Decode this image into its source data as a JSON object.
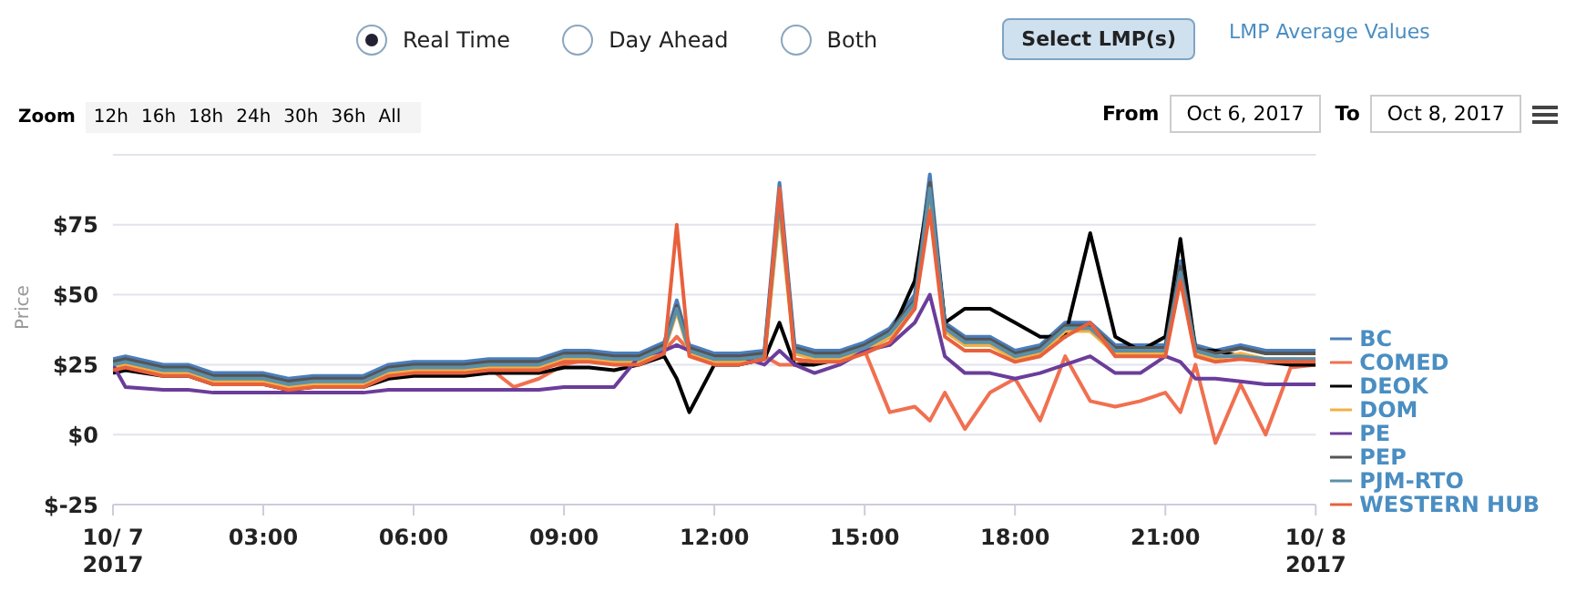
{
  "chart_data": {
    "type": "line",
    "ylabel": "Price",
    "legend": "right",
    "grid": "y",
    "marker": "none",
    "line_style": "solid",
    "annotations": [
      "Real Time",
      "Day Ahead",
      "Both",
      "Select LMP(s)",
      "LMP Average Values",
      "Zoom",
      "12h",
      "16h",
      "18h",
      "24h",
      "30h",
      "36h",
      "All",
      "From",
      "Oct 6, 2017",
      "To",
      "Oct 8, 2017"
    ],
    "xlim": [
      0,
      24
    ],
    "xticks": [
      {
        "value": 0,
        "label": "10/ 7\n2017"
      },
      {
        "value": 3,
        "label": "03:00"
      },
      {
        "value": 6,
        "label": "06:00"
      },
      {
        "value": 9,
        "label": "09:00"
      },
      {
        "value": 12,
        "label": "12:00"
      },
      {
        "value": 15,
        "label": "15:00"
      },
      {
        "value": 18,
        "label": "18:00"
      },
      {
        "value": 21,
        "label": "21:00"
      },
      {
        "value": 24,
        "label": "10/ 8\n2017"
      }
    ],
    "ylim": [
      -25,
      100
    ],
    "yticks": [
      {
        "value": -25,
        "label": "$-25"
      },
      {
        "value": 0,
        "label": "$0"
      },
      {
        "value": 25,
        "label": "$25"
      },
      {
        "value": 50,
        "label": "$50"
      },
      {
        "value": 75,
        "label": "$75"
      },
      {
        "value": 100,
        "label": null
      }
    ],
    "x": [
      0,
      0.25,
      1,
      1.5,
      2,
      2.5,
      3,
      3.5,
      4,
      4.5,
      5,
      5.5,
      6,
      6.5,
      7,
      7.5,
      8,
      8.5,
      9,
      9.5,
      10,
      10.5,
      11,
      11.25,
      11.5,
      12,
      12.5,
      13,
      13.3,
      13.6,
      14,
      14.5,
      15,
      15.5,
      16,
      16.3,
      16.6,
      17,
      17.5,
      18,
      18.5,
      19,
      19.5,
      20,
      20.5,
      21,
      21.3,
      21.6,
      22,
      22.5,
      23,
      23.5,
      24
    ],
    "series": [
      {
        "name": "BC",
        "color": "#4a7ebb",
        "values": [
          27,
          28,
          25,
          25,
          22,
          22,
          22,
          20,
          21,
          21,
          21,
          25,
          26,
          26,
          26,
          27,
          27,
          27,
          30,
          30,
          29,
          29,
          33,
          48,
          32,
          29,
          29,
          30,
          90,
          32,
          30,
          30,
          33,
          38,
          50,
          93,
          40,
          35,
          35,
          30,
          32,
          40,
          40,
          32,
          32,
          32,
          62,
          32,
          30,
          32,
          30,
          30,
          30
        ]
      },
      {
        "name": "COMED",
        "color": "#f07050",
        "values": [
          25,
          26,
          22,
          22,
          20,
          20,
          20,
          18,
          19,
          19,
          19,
          22,
          23,
          23,
          23,
          24,
          17,
          20,
          25,
          27,
          26,
          26,
          30,
          35,
          30,
          27,
          27,
          28,
          25,
          25,
          27,
          27,
          30,
          8,
          10,
          5,
          15,
          2,
          15,
          20,
          5,
          28,
          12,
          10,
          12,
          15,
          8,
          25,
          -3,
          18,
          0,
          24,
          25
        ]
      },
      {
        "name": "DEOK",
        "color": "#000000",
        "values": [
          22,
          23,
          21,
          21,
          18,
          18,
          18,
          16,
          17,
          17,
          17,
          20,
          21,
          21,
          21,
          22,
          22,
          22,
          24,
          24,
          23,
          25,
          28,
          20,
          8,
          25,
          25,
          27,
          40,
          25,
          25,
          27,
          30,
          35,
          55,
          88,
          40,
          45,
          45,
          40,
          35,
          35,
          72,
          35,
          30,
          35,
          70,
          30,
          30,
          28,
          26,
          25,
          25
        ]
      },
      {
        "name": "DOM",
        "color": "#f5b041",
        "values": [
          24,
          25,
          22,
          22,
          19,
          19,
          19,
          17,
          18,
          18,
          18,
          22,
          23,
          23,
          23,
          24,
          24,
          24,
          27,
          27,
          26,
          26,
          30,
          44,
          29,
          26,
          26,
          27,
          80,
          29,
          27,
          27,
          30,
          35,
          45,
          85,
          37,
          32,
          32,
          27,
          29,
          37,
          37,
          29,
          29,
          29,
          56,
          29,
          27,
          29,
          27,
          27,
          27
        ]
      },
      {
        "name": "PE",
        "color": "#6a3d9a",
        "values": [
          25,
          17,
          16,
          16,
          15,
          15,
          15,
          15,
          15,
          15,
          15,
          16,
          16,
          16,
          16,
          16,
          16,
          16,
          17,
          17,
          17,
          28,
          30,
          32,
          30,
          28,
          28,
          25,
          30,
          25,
          22,
          25,
          30,
          32,
          40,
          50,
          28,
          22,
          22,
          20,
          22,
          25,
          28,
          22,
          22,
          28,
          26,
          20,
          20,
          19,
          18,
          18,
          18
        ]
      },
      {
        "name": "PEP",
        "color": "#555555",
        "values": [
          26,
          27,
          24,
          24,
          21,
          21,
          21,
          19,
          20,
          20,
          20,
          24,
          25,
          25,
          25,
          26,
          26,
          26,
          29,
          29,
          28,
          28,
          32,
          46,
          31,
          28,
          28,
          29,
          86,
          31,
          29,
          29,
          32,
          37,
          48,
          90,
          39,
          34,
          34,
          29,
          31,
          39,
          39,
          31,
          31,
          31,
          60,
          31,
          29,
          31,
          29,
          29,
          29
        ]
      },
      {
        "name": "PJM-RTO",
        "color": "#5b8fa8",
        "values": [
          25,
          26,
          23,
          23,
          20,
          20,
          20,
          18,
          19,
          19,
          19,
          23,
          24,
          24,
          24,
          25,
          25,
          25,
          28,
          28,
          27,
          27,
          31,
          45,
          30,
          27,
          27,
          28,
          84,
          30,
          28,
          28,
          31,
          36,
          47,
          88,
          38,
          33,
          33,
          28,
          30,
          38,
          38,
          30,
          30,
          30,
          58,
          30,
          28,
          28,
          27,
          27,
          27
        ]
      },
      {
        "name": "WESTERN HUB",
        "color": "#e8613c",
        "values": [
          23,
          24,
          21,
          21,
          18,
          18,
          18,
          16,
          17,
          17,
          17,
          21,
          22,
          22,
          22,
          23,
          23,
          23,
          26,
          26,
          25,
          25,
          29,
          75,
          28,
          25,
          25,
          27,
          88,
          27,
          26,
          26,
          29,
          33,
          45,
          80,
          35,
          30,
          30,
          26,
          28,
          35,
          40,
          28,
          28,
          28,
          55,
          28,
          26,
          27,
          26,
          26,
          26
        ]
      }
    ]
  }
}
